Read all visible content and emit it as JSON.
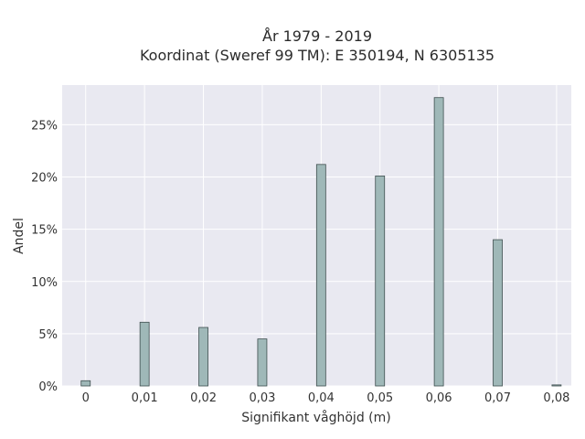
{
  "chart_data": {
    "type": "bar",
    "title_line1": "År 1979 - 2019",
    "title_line2": "Koordinat (Sweref 99 TM): E 350194, N 6305135",
    "xlabel": "Signifikant våghöjd (m)",
    "ylabel": "Andel",
    "x_ticks": [
      "0",
      "0,01",
      "0,02",
      "0,03",
      "0,04",
      "0,05",
      "0,06",
      "0,07",
      "0,08"
    ],
    "y_ticks": [
      "0%",
      "5%",
      "10%",
      "15%",
      "20%",
      "25%"
    ],
    "xlim": [
      -0.004,
      0.0825
    ],
    "ylim": [
      0,
      28.8
    ],
    "x": [
      0,
      0.01,
      0.02,
      0.03,
      0.04,
      0.05,
      0.06,
      0.07,
      0.08
    ],
    "values": [
      0.5,
      6.1,
      5.6,
      4.5,
      21.2,
      20.1,
      27.6,
      14.0,
      0.1
    ],
    "grid": true,
    "colors": {
      "bar_fill": "#9fb8b8",
      "bar_stroke": "#3f4f4f",
      "plot_bg": "#e9e9f1",
      "grid": "#ffffff"
    }
  }
}
